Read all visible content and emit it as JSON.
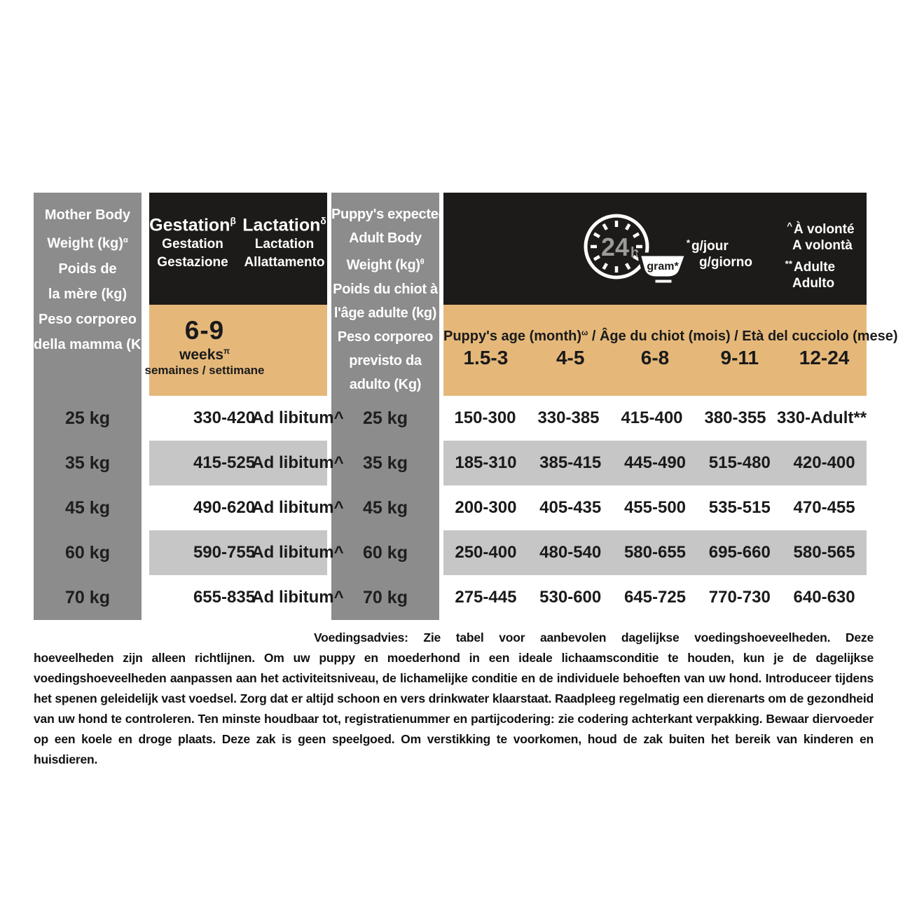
{
  "colors": {
    "black": "#1d1b19",
    "tan": "#e5b87a",
    "gray_column": "#8c8c8c",
    "row_stripe": "#c6c6c6",
    "clock_text_gray": "#9b9b9b"
  },
  "mother_table": {
    "header_lines": [
      "Mother Body",
      {
        "t": "Weight (kg)",
        "sup": "α"
      },
      "Poids de",
      "la mère (kg)",
      "Peso corporeo",
      "della mamma (Kg)"
    ],
    "gestation_header": {
      "title": "Gestation",
      "sup": "β",
      "sub1": "Gestation",
      "sub2": "Gestazione"
    },
    "lactation_header": {
      "title": "Lactation",
      "sup": "δ",
      "sub1": "Lactation",
      "sub2": "Allattamento"
    },
    "weeks_band": {
      "range": "6-9",
      "unit": "weeks",
      "unit_sup": "π",
      "subtitle": "semaines / settimane"
    },
    "rows": [
      {
        "weight": "25 kg",
        "gestation": "330-420",
        "lactation": "Ad libitum^"
      },
      {
        "weight": "35 kg",
        "gestation": "415-525",
        "lactation": "Ad libitum^"
      },
      {
        "weight": "45 kg",
        "gestation": "490-620",
        "lactation": "Ad libitum^"
      },
      {
        "weight": "60 kg",
        "gestation": "590-755",
        "lactation": "Ad libitum^"
      },
      {
        "weight": "70 kg",
        "gestation": "655-835",
        "lactation": "Ad libitum^"
      }
    ]
  },
  "puppy_table": {
    "header_lines": [
      "Puppy's expected",
      "Adult Body",
      {
        "t": "Weight (kg)",
        "sup": "θ"
      },
      "Poids du chiot à",
      "l'âge adulte (kg)",
      "Peso corporeo",
      "previsto da",
      "adulto (Kg)"
    ],
    "legend": {
      "clock_value": "24",
      "clock_unit": "h",
      "bowl_label": "gram*",
      "per_day_prefix": "*",
      "per_day_line1": "g/jour",
      "per_day_line2": "g/giorno",
      "ad_libitum_prefix": "^",
      "ad_libitum_line1": "À volonté",
      "ad_libitum_line2": "A volontà",
      "adult_prefix": "**",
      "adult_line1": "Adulte",
      "adult_line2": "Adulto"
    },
    "age_band": {
      "title_en": "Puppy's age (month)",
      "title_sup": "ω",
      "title_rest": " / Âge du chiot (mois) / Età del cucciolo (mese)",
      "ages": [
        "1.5-3",
        "4-5",
        "6-8",
        "9-11",
        "12-24"
      ]
    },
    "rows": [
      {
        "weight": "25 kg",
        "values": [
          "150-300",
          "330-385",
          "415-400",
          "380-355",
          "330-Adult**"
        ]
      },
      {
        "weight": "35 kg",
        "values": [
          "185-310",
          "385-415",
          "445-490",
          "515-480",
          "420-400"
        ]
      },
      {
        "weight": "45 kg",
        "values": [
          "200-300",
          "405-435",
          "455-500",
          "535-515",
          "470-455"
        ]
      },
      {
        "weight": "60 kg",
        "values": [
          "250-400",
          "480-540",
          "580-655",
          "695-660",
          "580-565"
        ]
      },
      {
        "weight": "70 kg",
        "values": [
          "275-445",
          "530-600",
          "645-725",
          "770-730",
          "640-630"
        ]
      }
    ]
  },
  "footer": {
    "label": "Voedingsadvies:",
    "text": " Zie tabel voor aanbevolen dagelijkse voedingshoeveelheden. Deze hoeveelheden zijn alleen richtlijnen. Om uw puppy en moederhond in een ideale lichaamsconditie te houden, kun je de dagelijkse voedingshoeveelheden aanpassen aan het activiteitsniveau, de lichamelijke conditie en de individuele behoeften van uw hond. Introduceer tijdens het spenen geleidelijk vast voedsel. Zorg dat er altijd schoon en vers drinkwater klaarstaat. Raadpleeg regelmatig een dierenarts om de gezondheid van uw hond te controleren. Ten minste houdbaar tot, registratienummer en partijcodering: zie codering achterkant verpakking. Bewaar diervoeder op een koele en droge plaats. Deze zak is geen speelgoed. Om verstikking te voorkomen, houd de zak buiten het bereik van kinderen en huisdieren."
  }
}
